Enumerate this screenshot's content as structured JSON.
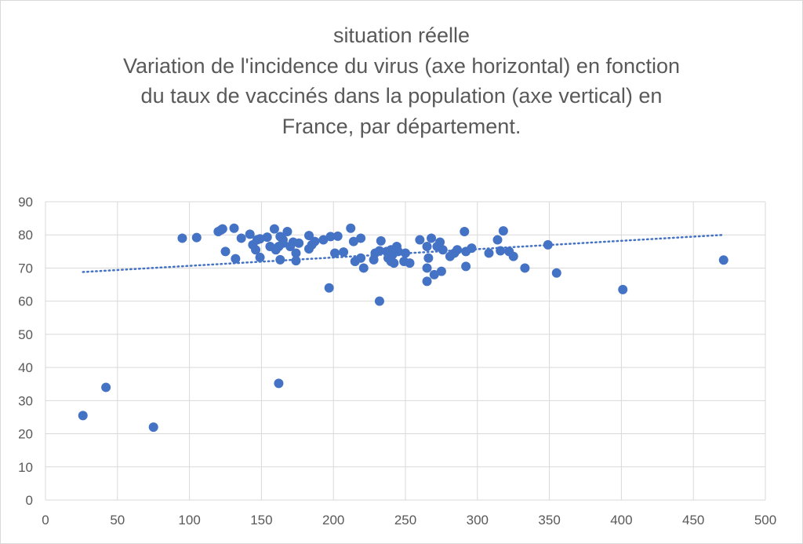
{
  "chart_data": {
    "type": "scatter",
    "title_lines": [
      "situation réelle",
      "Variation de l'incidence du virus (axe horizontal) en fonction",
      "du taux de vaccinés dans la population (axe vertical) en",
      "France, par département."
    ],
    "xlabel": "",
    "ylabel": "",
    "xlim": [
      0,
      500
    ],
    "ylim": [
      0,
      90
    ],
    "x_ticks": [
      "0",
      "50",
      "100",
      "150",
      "200",
      "250",
      "300",
      "350",
      "400",
      "450",
      "500"
    ],
    "y_ticks": [
      "0",
      "10",
      "20",
      "30",
      "40",
      "50",
      "60",
      "70",
      "80",
      "90"
    ],
    "grid": true,
    "legend": "none",
    "point_color": "#4472c4",
    "trendline": {
      "style": "dotted",
      "color": "#4472c4",
      "from": [
        26,
        68.8
      ],
      "to": [
        471,
        80.0
      ]
    },
    "points": [
      [
        26,
        25.5
      ],
      [
        42,
        34
      ],
      [
        75,
        22
      ],
      [
        95,
        79
      ],
      [
        105,
        79.2
      ],
      [
        120,
        81
      ],
      [
        122,
        81.5
      ],
      [
        123,
        81.8
      ],
      [
        125,
        75
      ],
      [
        131,
        82
      ],
      [
        132,
        72.8
      ],
      [
        136,
        79
      ],
      [
        142,
        80.2
      ],
      [
        144,
        77
      ],
      [
        146,
        75.5
      ],
      [
        147,
        78.5
      ],
      [
        149,
        78.8
      ],
      [
        149,
        73.2
      ],
      [
        154,
        79.3
      ],
      [
        156,
        76.5
      ],
      [
        159,
        81.8
      ],
      [
        160,
        75.5
      ],
      [
        162,
        76.5
      ],
      [
        163,
        79.5
      ],
      [
        163,
        72.5
      ],
      [
        165,
        78.5
      ],
      [
        165,
        77.5
      ],
      [
        168,
        81
      ],
      [
        170,
        76.5
      ],
      [
        172,
        77.8
      ],
      [
        174,
        72.2
      ],
      [
        174,
        74.5
      ],
      [
        176,
        77.5
      ],
      [
        162,
        35.2
      ],
      [
        183,
        79.8
      ],
      [
        183,
        75.8
      ],
      [
        185,
        77
      ],
      [
        187,
        78
      ],
      [
        193,
        78.5
      ],
      [
        197,
        64
      ],
      [
        198,
        79.5
      ],
      [
        201,
        74.5
      ],
      [
        203,
        79.6
      ],
      [
        207,
        74.8
      ],
      [
        212,
        82
      ],
      [
        214,
        78
      ],
      [
        215,
        72
      ],
      [
        219,
        79
      ],
      [
        219,
        73
      ],
      [
        221,
        70
      ],
      [
        228,
        72.5
      ],
      [
        229,
        74.5
      ],
      [
        232,
        75.2
      ],
      [
        233,
        78.2
      ],
      [
        232,
        60
      ],
      [
        237,
        75
      ],
      [
        238,
        73
      ],
      [
        240,
        72
      ],
      [
        240,
        75.5
      ],
      [
        241,
        74
      ],
      [
        242,
        71.5
      ],
      [
        244,
        76.5
      ],
      [
        245,
        75
      ],
      [
        249,
        72
      ],
      [
        250,
        74.5
      ],
      [
        253,
        71.5
      ],
      [
        260,
        78.5
      ],
      [
        265,
        76.5
      ],
      [
        265,
        70
      ],
      [
        266,
        73
      ],
      [
        265,
        66
      ],
      [
        268,
        79
      ],
      [
        270,
        68
      ],
      [
        272,
        76.5
      ],
      [
        274,
        77.8
      ],
      [
        275,
        69
      ],
      [
        276,
        75.5
      ],
      [
        281,
        73.5
      ],
      [
        284,
        74.5
      ],
      [
        286,
        75.5
      ],
      [
        291,
        81
      ],
      [
        292,
        75
      ],
      [
        292,
        70.5
      ],
      [
        296,
        76
      ],
      [
        308,
        74.5
      ],
      [
        314,
        78.5
      ],
      [
        316,
        75.2
      ],
      [
        318,
        81.2
      ],
      [
        322,
        75
      ],
      [
        325,
        73.5
      ],
      [
        333,
        70
      ],
      [
        349,
        77
      ],
      [
        355,
        68.5
      ],
      [
        401,
        63.5
      ],
      [
        471,
        72.4
      ]
    ]
  }
}
